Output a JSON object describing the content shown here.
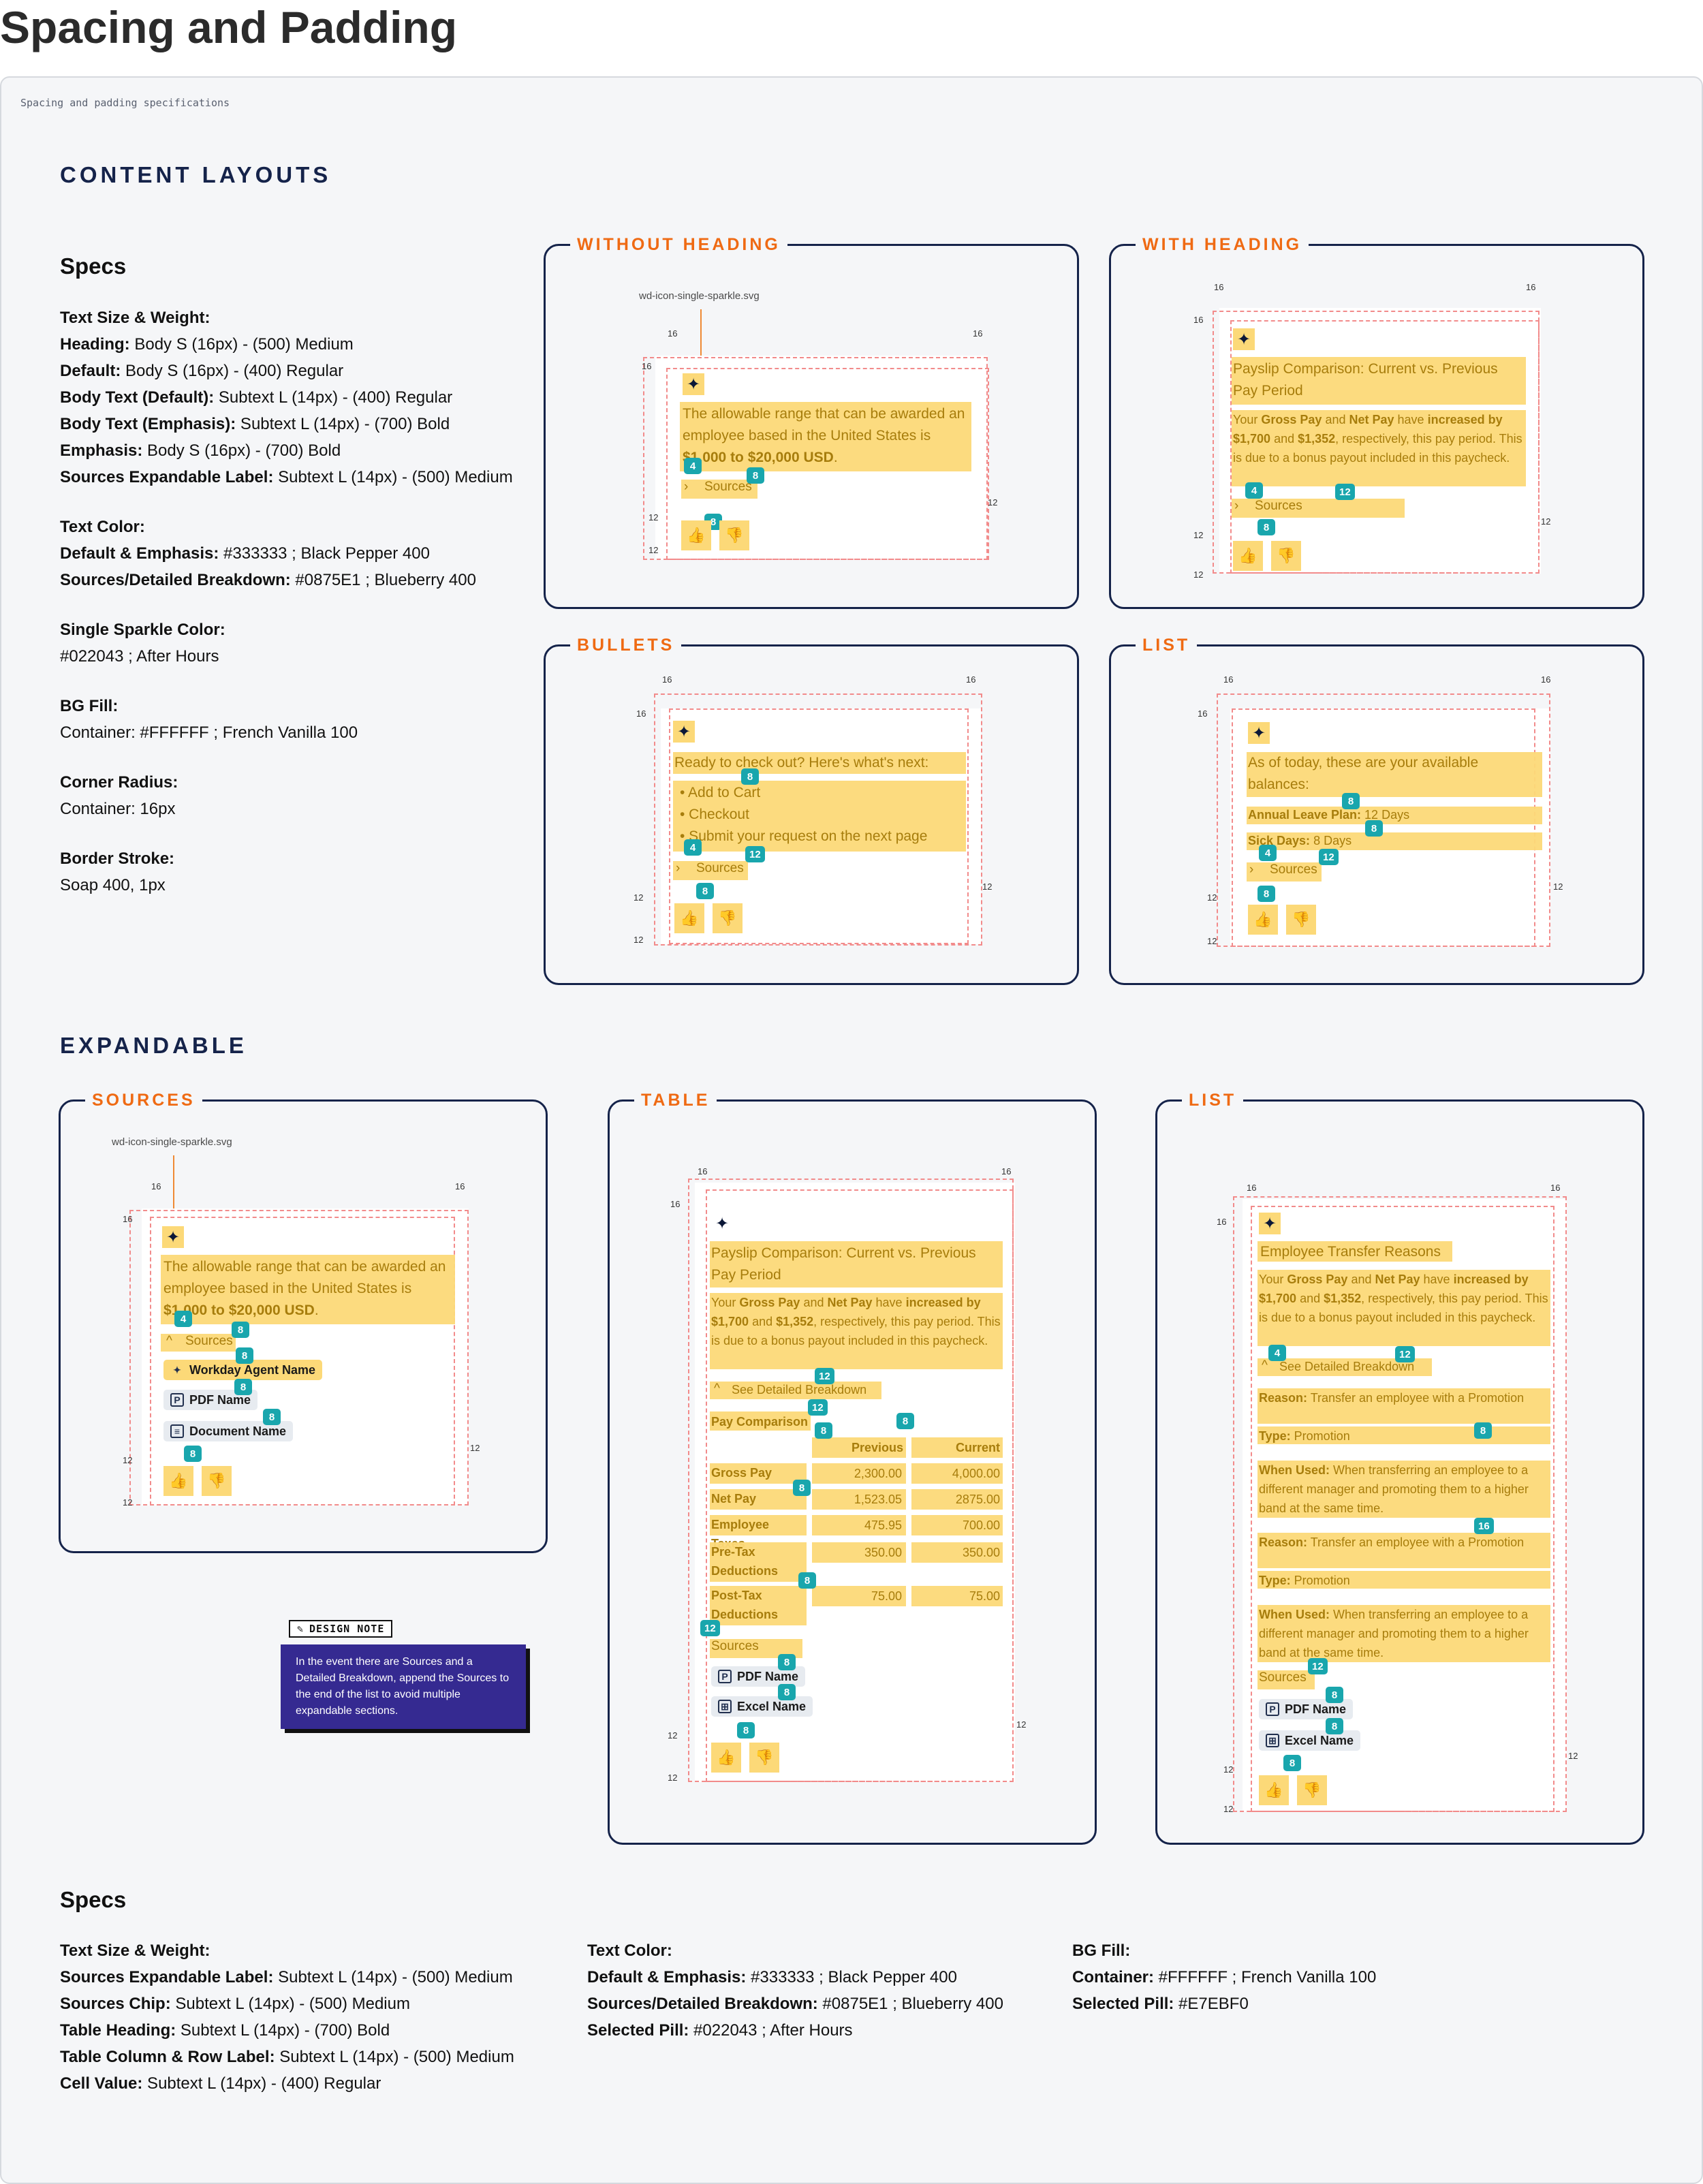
{
  "title": "Spacing and Padding",
  "caption": "Spacing and padding specifications",
  "sections": {
    "content_layouts": "CONTENT LAYOUTS",
    "expandable": "EXPANDABLE"
  },
  "specs_heading": "Specs",
  "specs_top": [
    {
      "label": "Text Size & Weight:",
      "v": ""
    },
    {
      "label": "Heading:",
      "v": " Body S (16px) - (500) Medium"
    },
    {
      "label": "Default:",
      "v": " Body S (16px) - (400) Regular"
    },
    {
      "label": "Body Text (Default):",
      "v": " Subtext L (14px) - (400) Regular"
    },
    {
      "label": "Body Text (Emphasis):",
      "v": " Subtext L (14px) - (700) Bold"
    },
    {
      "label": "Emphasis:",
      "v": " Body S (16px) - (700) Bold"
    },
    {
      "label": "Sources Expandable Label:",
      "v": " Subtext L (14px) - (500) Medium"
    },
    {
      "gap": true
    },
    {
      "label": "Text Color:",
      "v": ""
    },
    {
      "label": "Default & Emphasis:",
      "v": " #333333 ; Black Pepper 400"
    },
    {
      "label": "Sources/Detailed Breakdown:",
      "v": " #0875E1 ; Blueberry 400"
    },
    {
      "gap": true
    },
    {
      "label": "Single Sparkle Color:",
      "v": ""
    },
    {
      "label": "",
      "v": "#022043 ; After Hours"
    },
    {
      "gap": true
    },
    {
      "label": "BG Fill:",
      "v": ""
    },
    {
      "label": "",
      "v": "Container: #FFFFFF ; French Vanilla 100"
    },
    {
      "gap": true
    },
    {
      "label": "Corner Radius:",
      "v": ""
    },
    {
      "label": "",
      "v": "Container: 16px"
    },
    {
      "gap": true
    },
    {
      "label": "Border Stroke:",
      "v": ""
    },
    {
      "label": "",
      "v": "Soap 400, 1px"
    }
  ],
  "frames": {
    "without_heading": "WITHOUT HEADING",
    "with_heading": "WITH HEADING",
    "bullets": "BULLETS",
    "list": "LIST",
    "sources": "SOURCES",
    "table": "TABLE",
    "list2": "LIST"
  },
  "svg_note": "wd-icon-single-sparkle.svg",
  "sparkle_glyph": "✦",
  "thumbs": {
    "up": "👍",
    "down": "👎"
  },
  "wh_text": "The allowable range that can be awarded an employee based in the United States is ",
  "wh_bold": "$1,000 to $20,000 USD",
  "sources_label": "Sources",
  "chev_right": "›",
  "chev_up": "^",
  "heading_text": "Payslip Comparison: Current vs. Previous Pay Period",
  "gross_text": [
    "Your ",
    "Gross Pay",
    " and ",
    "Net Pay",
    " have ",
    "increased by $1,700",
    " and ",
    "$1,352",
    ", respectively, this pay period. This is due to a bonus payout included in this paycheck."
  ],
  "bullets_intro": "Ready to check out? Here's what's next:",
  "bullets": [
    "Add to Cart",
    "Checkout",
    "Submit your request on the next page"
  ],
  "list_intro": "As of today, these are your available balances:",
  "list_items": [
    {
      "k": "Annual Leave Plan:",
      "v": " 12 Days"
    },
    {
      "k": "Sick Days:",
      "v": " 8 Days"
    }
  ],
  "src_chips": [
    "Workday Agent Name",
    "PDF Name",
    "Document Name"
  ],
  "table_chips": [
    "PDF Name",
    "Excel Name"
  ],
  "see_breakdown": "See Detailed Breakdown",
  "table": {
    "heading": "Pay Comparison",
    "cols": [
      "Previous",
      "Current"
    ],
    "rows": [
      {
        "label": "Gross Pay",
        "prev": "2,300.00",
        "cur": "4,000.00"
      },
      {
        "label": "Net Pay",
        "prev": "1,523.05",
        "cur": "2875.00"
      },
      {
        "label": "Employee Taxes",
        "prev": "475.95",
        "cur": "700.00"
      },
      {
        "label": "Pre-Tax Deductions",
        "prev": "350.00",
        "cur": "350.00"
      },
      {
        "label": "Post-Tax Deductions",
        "prev": "75.00",
        "cur": "75.00"
      }
    ]
  },
  "transfer_title": "Employee Transfer Reasons",
  "transfer_items": [
    {
      "k": "Reason:",
      "v": " Transfer an employee with a Promotion"
    },
    {
      "k": "Type:",
      "v": " Promotion"
    },
    {
      "k": "When Used:",
      "v": " When transferring an employee to a different manager and promoting them to a higher band at the same time."
    },
    {
      "k": "Reason:",
      "v": " Transfer an employee with a Promotion"
    },
    {
      "k": "Type:",
      "v": " Promotion"
    },
    {
      "k": "When Used:",
      "v": " When transferring an employee to a different manager and promoting them to a higher band at the same time."
    }
  ],
  "design_note": {
    "tag": "DESIGN NOTE",
    "text": "In the event there are Sources and a Detailed Breakdown, append the Sources to the end of the list to avoid multiple expandable sections."
  },
  "specs_bottom": {
    "col1": [
      {
        "label": "Text Size & Weight:",
        "v": ""
      },
      {
        "label": "Sources Expandable Label:",
        "v": " Subtext L (14px) - (500) Medium"
      },
      {
        "label": "Sources Chip:",
        "v": " Subtext L (14px) - (500) Medium"
      },
      {
        "label": "Table Heading:",
        "v": " Subtext L (14px) - (700) Bold"
      },
      {
        "label": "Table Column & Row Label:",
        "v": " Subtext L (14px) - (500) Medium"
      },
      {
        "label": "Cell Value:",
        "v": " Subtext L (14px) - (400) Regular"
      }
    ],
    "col2": [
      {
        "label": "Text Color:",
        "v": ""
      },
      {
        "label": "Default & Emphasis:",
        "v": " #333333 ; Black Pepper 400"
      },
      {
        "label": "Sources/Detailed Breakdown:",
        "v": " #0875E1 ; Blueberry 400"
      },
      {
        "label": "Selected Pill:",
        "v": "  #022043 ; After Hours"
      }
    ],
    "col3": [
      {
        "label": "BG Fill:",
        "v": ""
      },
      {
        "label": "Container:",
        "v": " #FFFFFF ; French Vanilla 100"
      },
      {
        "label": "Selected Pill:",
        "v": " #E7EBF0"
      }
    ]
  },
  "measure": {
    "m16": "16",
    "m12": "12",
    "m8": "8",
    "m4": "4"
  },
  "colors": {
    "accent": "#EF6A13",
    "frame": "#15234A",
    "highlight": "#FCD978",
    "badge": "#19A6AD",
    "guide": "#F28B8B",
    "note": "#352A91"
  }
}
